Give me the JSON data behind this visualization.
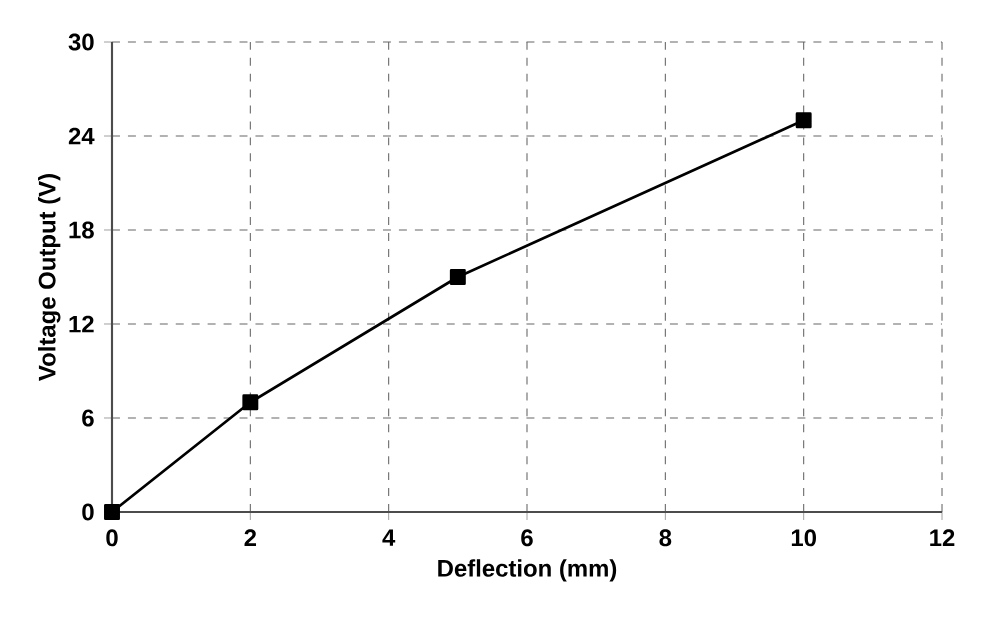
{
  "chart_data": {
    "type": "line",
    "xlabel": "Deflection (mm)",
    "ylabel": "Voltage Output (V)",
    "x": [
      0,
      2,
      5,
      10
    ],
    "series": [
      {
        "color": "#000000",
        "values": [
          0,
          7,
          15,
          25
        ]
      }
    ],
    "xlim": [
      0,
      12
    ],
    "xticks": [
      0,
      2,
      4,
      6,
      8,
      10,
      12
    ],
    "ylim": [
      0,
      30
    ],
    "yticks": [
      0,
      6,
      12,
      18,
      24,
      30
    ],
    "grid": true,
    "marker": "square",
    "line_style": "solid"
  }
}
